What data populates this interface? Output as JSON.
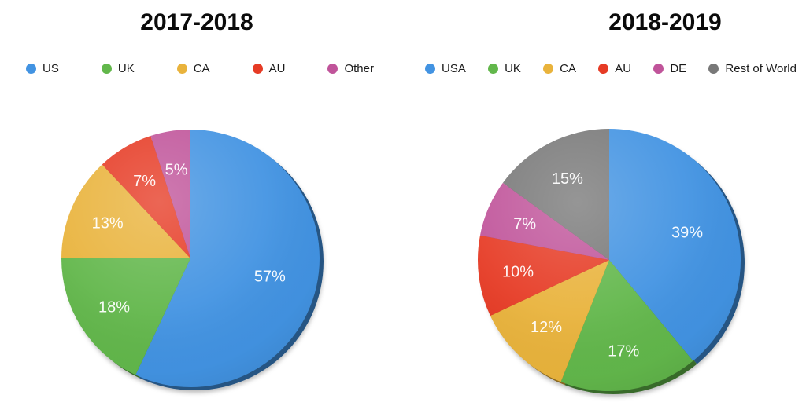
{
  "page": {
    "background": "#ffffff"
  },
  "chart_data": [
    {
      "type": "pie",
      "title": "2017-2018",
      "categories": [
        "US",
        "UK",
        "CA",
        "AU",
        "Other"
      ],
      "values": [
        57,
        18,
        13,
        7,
        5
      ],
      "labels": [
        "57%",
        "18%",
        "13%",
        "7%",
        "5%"
      ],
      "colors": [
        "#4293E2",
        "#62B74B",
        "#E9B33C",
        "#E63B25",
        "#C0549A"
      ],
      "unit": "%",
      "legend_position": "top",
      "legend_entries": [
        "US",
        "UK",
        "CA",
        "AU",
        "Other"
      ],
      "start_angle_deg": 0,
      "direction": "clockwise",
      "style": "3d-tilted",
      "label_color": "#FFFFFF",
      "title_color": "#0B0B0B"
    },
    {
      "type": "pie",
      "title": "2018-2019",
      "categories": [
        "USA",
        "UK",
        "CA",
        "AU",
        "DE",
        "Rest of World"
      ],
      "values": [
        39,
        17,
        12,
        10,
        7,
        15
      ],
      "labels": [
        "39%",
        "17%",
        "12%",
        "10%",
        "7%",
        "15%"
      ],
      "colors": [
        "#4293E2",
        "#62B74B",
        "#E9B33C",
        "#E63B25",
        "#C0549A",
        "#787878"
      ],
      "unit": "%",
      "legend_position": "top",
      "legend_entries": [
        "USA",
        "UK",
        "CA",
        "AU",
        "DE",
        "Rest of World"
      ],
      "start_angle_deg": 0,
      "direction": "clockwise",
      "style": "3d-tilted",
      "label_color": "#FFFFFF",
      "title_color": "#0B0B0B"
    }
  ]
}
